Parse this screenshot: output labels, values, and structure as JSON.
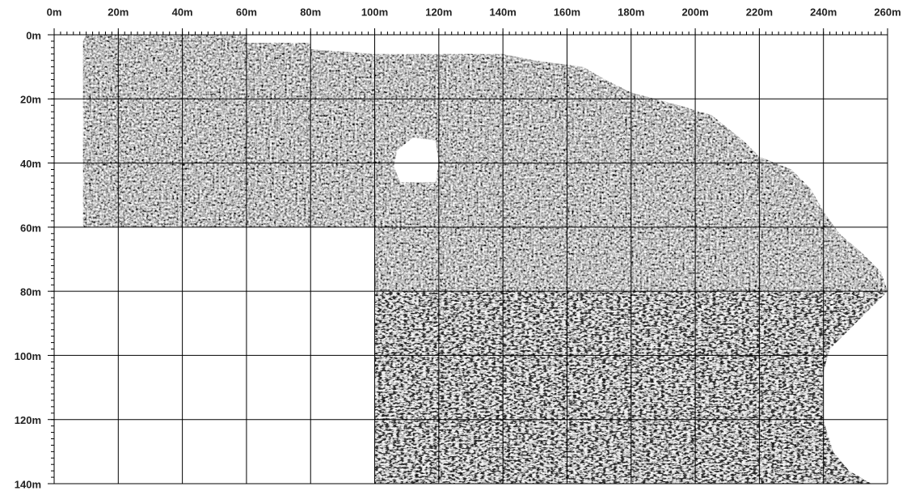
{
  "x_axis": {
    "lim": [
      0,
      260
    ],
    "minor_step": 2,
    "ticks": [
      {
        "value": 0,
        "label": "0m"
      },
      {
        "value": 20,
        "label": "20m"
      },
      {
        "value": 40,
        "label": "40m"
      },
      {
        "value": 60,
        "label": "60m"
      },
      {
        "value": 80,
        "label": "80m"
      },
      {
        "value": 100,
        "label": "100m"
      },
      {
        "value": 120,
        "label": "120m"
      },
      {
        "value": 140,
        "label": "140m"
      },
      {
        "value": 160,
        "label": "160m"
      },
      {
        "value": 180,
        "label": "180m"
      },
      {
        "value": 200,
        "label": "200m"
      },
      {
        "value": 220,
        "label": "220m"
      },
      {
        "value": 240,
        "label": "240m"
      },
      {
        "value": 260,
        "label": "260m"
      }
    ]
  },
  "y_axis": {
    "lim": [
      0,
      140
    ],
    "minor_step": 2,
    "ticks": [
      {
        "value": 0,
        "label": "0m"
      },
      {
        "value": 20,
        "label": "20m"
      },
      {
        "value": 40,
        "label": "40m"
      },
      {
        "value": 60,
        "label": "60m"
      },
      {
        "value": 80,
        "label": "80m"
      },
      {
        "value": 100,
        "label": "100m"
      },
      {
        "value": 120,
        "label": "120m"
      },
      {
        "value": 140,
        "label": "140m"
      }
    ]
  },
  "grid": true
}
